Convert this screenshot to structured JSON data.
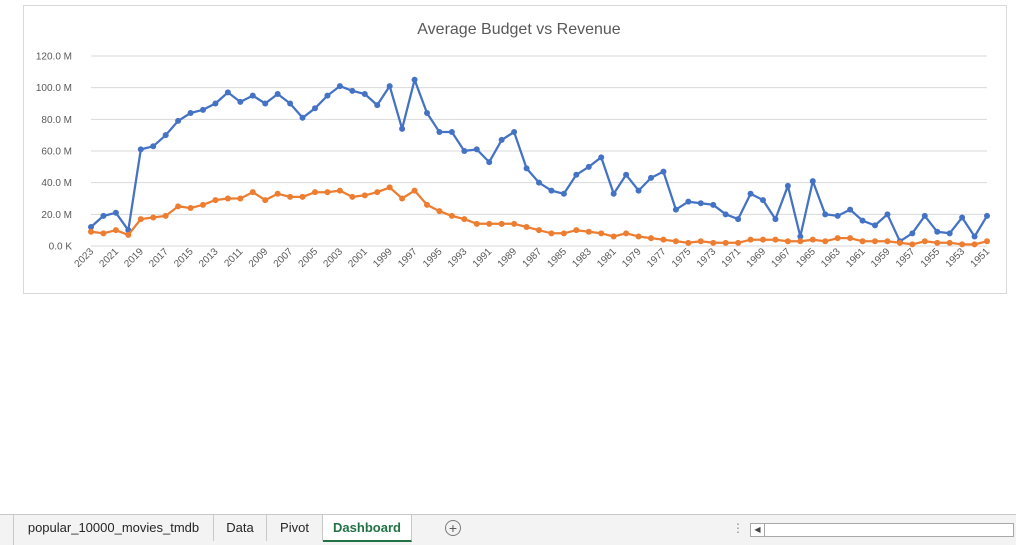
{
  "chart_data": {
    "type": "line",
    "title": "Average Budget vs Revenue",
    "ylim": [
      0,
      120
    ],
    "ytick_values": [
      0,
      20,
      40,
      60,
      80,
      100,
      120
    ],
    "ytick_labels": [
      "0.0 K",
      "20.0 M",
      "40.0 M",
      "60.0 M",
      "80.0 M",
      "100.0 M",
      "120.0 M"
    ],
    "grid": true,
    "legend": "none",
    "x": [
      "2023",
      "2022",
      "2021",
      "2020",
      "2019",
      "2018",
      "2017",
      "2016",
      "2015",
      "2014",
      "2013",
      "2012",
      "2011",
      "2010",
      "2009",
      "2008",
      "2007",
      "2006",
      "2005",
      "2004",
      "2003",
      "2002",
      "2001",
      "2000",
      "1999",
      "1998",
      "1997",
      "1996",
      "1995",
      "1994",
      "1993",
      "1992",
      "1991",
      "1990",
      "1989",
      "1988",
      "1987",
      "1986",
      "1985",
      "1984",
      "1983",
      "1982",
      "1981",
      "1980",
      "1979",
      "1978",
      "1977",
      "1976",
      "1975",
      "1974",
      "1973",
      "1972",
      "1971",
      "1970",
      "1969",
      "1968",
      "1967",
      "1966",
      "1965",
      "1964",
      "1963",
      "1962",
      "1961",
      "1960",
      "1959",
      "1958",
      "1957",
      "1956",
      "1955",
      "1954",
      "1953",
      "1952",
      "1951"
    ],
    "series": [
      {
        "color": "#4472c4",
        "values": [
          12,
          19,
          21,
          10,
          61,
          63,
          70,
          79,
          84,
          86,
          90,
          97,
          91,
          95,
          90,
          96,
          90,
          81,
          87,
          95,
          101,
          98,
          96,
          89,
          101,
          74,
          105,
          84,
          72,
          72,
          60,
          61,
          53,
          67,
          72,
          49,
          40,
          35,
          33,
          45,
          50,
          56,
          33,
          45,
          35,
          43,
          47,
          23,
          28,
          27,
          26,
          20,
          17,
          33,
          29,
          17,
          38,
          6,
          41,
          20,
          19,
          23,
          16,
          13,
          20,
          3,
          8,
          19,
          9,
          8,
          18,
          6,
          19
        ]
      },
      {
        "color": "#ed7d31",
        "values": [
          9,
          8,
          10,
          7,
          17,
          18,
          19,
          25,
          24,
          26,
          29,
          30,
          30,
          34,
          29,
          33,
          31,
          31,
          34,
          34,
          35,
          31,
          32,
          34,
          37,
          30,
          35,
          26,
          22,
          19,
          17,
          14,
          14,
          14,
          14,
          12,
          10,
          8,
          8,
          10,
          9,
          8,
          6,
          8,
          6,
          5,
          4,
          3,
          2,
          3,
          2,
          2,
          2,
          4,
          4,
          4,
          3,
          3,
          4,
          3,
          5,
          5,
          3,
          3,
          3,
          2,
          1,
          3,
          2,
          2,
          1,
          1,
          3
        ]
      }
    ]
  },
  "sheets": {
    "tabs": [
      "popular_10000_movies_tmdb",
      "Data",
      "Pivot",
      "Dashboard"
    ],
    "add_icon": "+"
  }
}
